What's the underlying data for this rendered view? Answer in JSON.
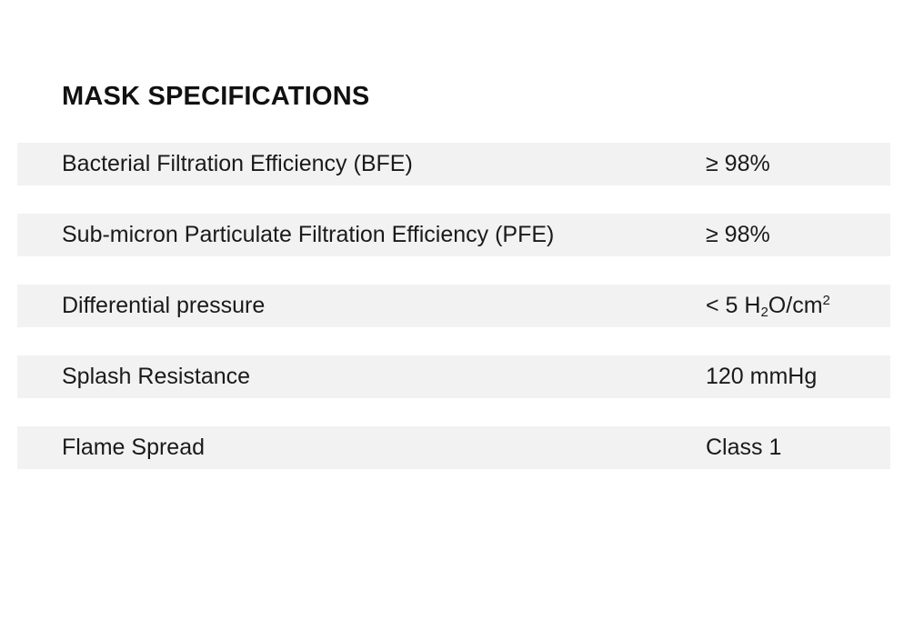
{
  "title": "MASK SPECIFICATIONS",
  "colors": {
    "row_background": "#f2f2f2",
    "text": "#1a1a1a",
    "page_background": "#ffffff"
  },
  "specs": [
    {
      "label": "Bacterial Filtration Efficiency (BFE)",
      "value": "≥ 98%"
    },
    {
      "label": "Sub-micron Particulate Filtration Efficiency (PFE)",
      "value": "≥ 98%"
    },
    {
      "label": "Differential pressure",
      "value_parts": {
        "prefix": "< 5 H",
        "sub": "2",
        "middle": "O/cm",
        "sup": "2"
      }
    },
    {
      "label": "Splash Resistance",
      "value": "120 mmHg"
    },
    {
      "label": "Flame Spread",
      "value": "Class 1"
    }
  ]
}
